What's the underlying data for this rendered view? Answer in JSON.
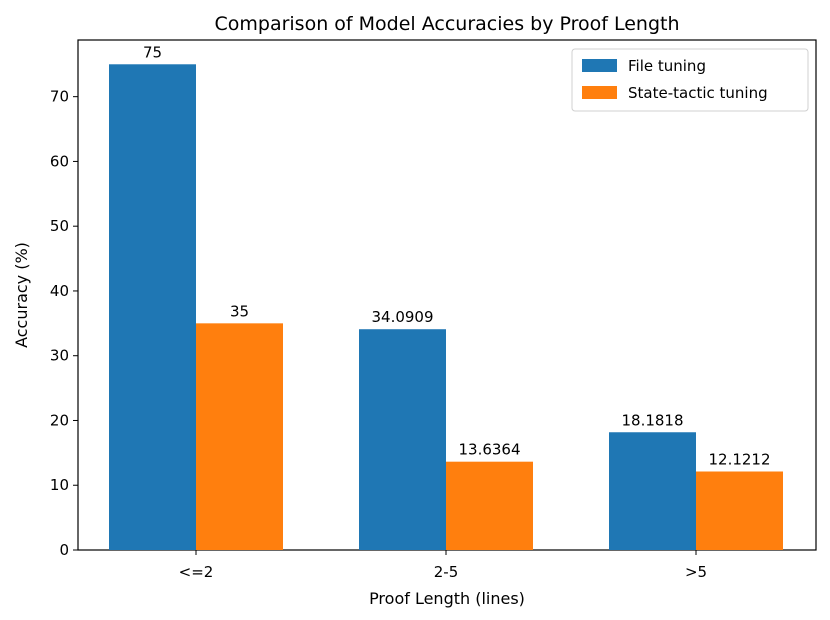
{
  "chart_data": {
    "type": "bar",
    "title": "Comparison of Model Accuracies by Proof Length",
    "xlabel": "Proof Length (lines)",
    "ylabel": "Accuracy (%)",
    "categories": [
      "<=2",
      "2-5",
      ">5"
    ],
    "series": [
      {
        "name": "File tuning",
        "color": "#1f77b4",
        "values": [
          75,
          34.0909,
          18.1818
        ],
        "labels": [
          "75",
          "34.0909",
          "18.1818"
        ]
      },
      {
        "name": "State-tactic tuning",
        "color": "#ff7f0e",
        "values": [
          35,
          13.6364,
          12.1212
        ],
        "labels": [
          "35",
          "13.6364",
          "12.1212"
        ]
      }
    ],
    "ylim": [
      0,
      78.75
    ],
    "yticks": [
      0,
      10,
      20,
      30,
      40,
      50,
      60,
      70
    ],
    "legend_position": "top-right",
    "grid": false
  }
}
